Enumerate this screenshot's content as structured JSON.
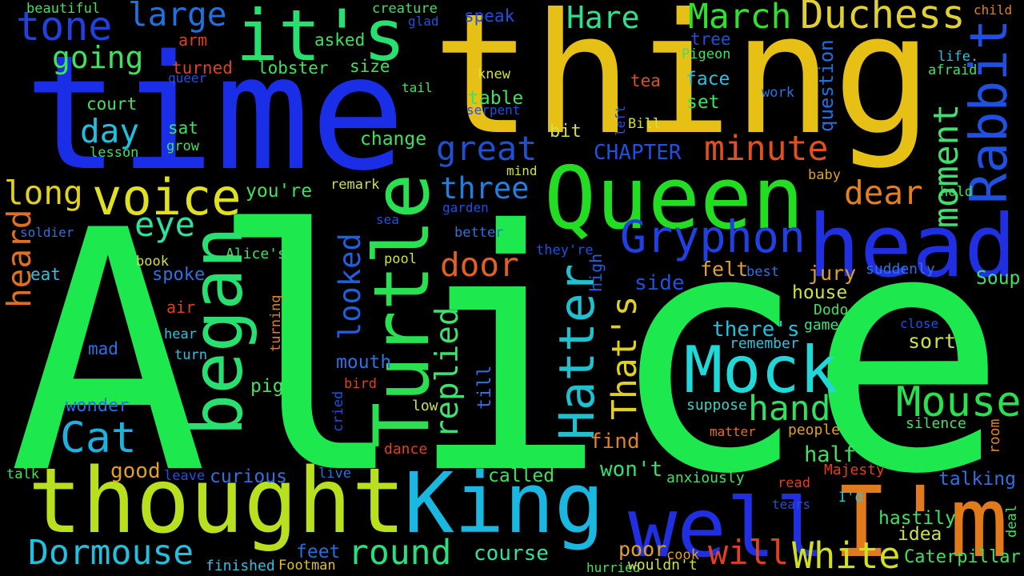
{
  "words": [
    {
      "text": "Alice",
      "color": "#1de84e"
    },
    {
      "text": "time",
      "color": "#1a2ee8"
    },
    {
      "text": "thing",
      "color": "#e6c014"
    },
    {
      "text": "Queen",
      "color": "#22dd22"
    },
    {
      "text": "head",
      "color": "#2030e0"
    },
    {
      "text": "thought",
      "color": "#b8e01e"
    },
    {
      "text": "King",
      "color": "#1ab8e0"
    },
    {
      "text": "well",
      "color": "#2030e0"
    },
    {
      "text": "I'm",
      "color": "#e07a1a"
    },
    {
      "text": "Mock",
      "color": "#20d8d8"
    },
    {
      "text": "it's",
      "color": "#28e070"
    },
    {
      "text": "Turtle",
      "color": "#28e050"
    },
    {
      "text": "began",
      "color": "#28e070"
    },
    {
      "text": "voice",
      "color": "#e0e020"
    },
    {
      "text": "Gryphon",
      "color": "#2040e0"
    },
    {
      "text": "Rabbit",
      "color": "#2050e0"
    },
    {
      "text": "Hatter",
      "color": "#20c0d0"
    },
    {
      "text": "Mouse",
      "color": "#28e050"
    },
    {
      "text": "Cat",
      "color": "#20b0e0"
    },
    {
      "text": "Dormouse",
      "color": "#20c0e0"
    },
    {
      "text": "round",
      "color": "#28e080"
    },
    {
      "text": "White",
      "color": "#d0e020"
    },
    {
      "text": "will",
      "color": "#e04020"
    },
    {
      "text": "Caterpillar",
      "color": "#40e060"
    },
    {
      "text": "Duchess",
      "color": "#e0d030"
    },
    {
      "text": "March",
      "color": "#30e030"
    },
    {
      "text": "Hare",
      "color": "#30e090"
    },
    {
      "text": "minute",
      "color": "#e05020"
    },
    {
      "text": "dear",
      "color": "#e08020"
    },
    {
      "text": "moment",
      "color": "#40e070"
    },
    {
      "text": "question",
      "color": "#2070e0"
    },
    {
      "text": "great",
      "color": "#2050d0"
    },
    {
      "text": "three",
      "color": "#2080e0"
    },
    {
      "text": "looked",
      "color": "#2060e0"
    },
    {
      "text": "door",
      "color": "#e06020"
    },
    {
      "text": "replied",
      "color": "#40e070"
    },
    {
      "text": "That's",
      "color": "#e0d020"
    },
    {
      "text": "hand",
      "color": "#30e060"
    },
    {
      "text": "tone",
      "color": "#2040e0"
    },
    {
      "text": "large",
      "color": "#2070e0"
    },
    {
      "text": "going",
      "color": "#40e060"
    },
    {
      "text": "day",
      "color": "#20c0e0"
    },
    {
      "text": "long",
      "color": "#e0d020"
    },
    {
      "text": "eye",
      "color": "#30e0a0"
    },
    {
      "text": "heard",
      "color": "#e07020"
    },
    {
      "text": "Soup",
      "color": "#40e060"
    },
    {
      "text": "jury",
      "color": "#e0a020"
    },
    {
      "text": "felt",
      "color": "#e0a030"
    },
    {
      "text": "side",
      "color": "#2050e0"
    },
    {
      "text": "house",
      "color": "#d0e040"
    },
    {
      "text": "there's",
      "color": "#20c0e0"
    },
    {
      "text": "sort",
      "color": "#d0e040"
    },
    {
      "text": "Dodo",
      "color": "#40e060"
    },
    {
      "text": "game",
      "color": "#40e080"
    },
    {
      "text": "remember",
      "color": "#30c0e0"
    },
    {
      "text": "close",
      "color": "#2050e0"
    },
    {
      "text": "suddenly",
      "color": "#3070e0"
    },
    {
      "text": "best",
      "color": "#3070e0"
    },
    {
      "text": "high",
      "color": "#2060e0"
    },
    {
      "text": "find",
      "color": "#e08020"
    },
    {
      "text": "won't",
      "color": "#30e070"
    },
    {
      "text": "half",
      "color": "#40e060"
    },
    {
      "text": "suppose",
      "color": "#40d0c0"
    },
    {
      "text": "silence",
      "color": "#40e070"
    },
    {
      "text": "room",
      "color": "#e08020"
    },
    {
      "text": "matter",
      "color": "#e07030"
    },
    {
      "text": "people",
      "color": "#e0a020"
    },
    {
      "text": "Majesty",
      "color": "#e04020"
    },
    {
      "text": "anxiously",
      "color": "#40e060"
    },
    {
      "text": "read",
      "color": "#e04020"
    },
    {
      "text": "talking",
      "color": "#3070e0"
    },
    {
      "text": "I'd",
      "color": "#30c0e0"
    },
    {
      "text": "tears",
      "color": "#2050e0"
    },
    {
      "text": "hastily",
      "color": "#40e060"
    },
    {
      "text": "idea",
      "color": "#d0e040"
    },
    {
      "text": "deal",
      "color": "#40e060"
    },
    {
      "text": "poor",
      "color": "#e0a020"
    },
    {
      "text": "cook",
      "color": "#e0a020"
    },
    {
      "text": "hurried",
      "color": "#40e060"
    },
    {
      "text": "wouldn't",
      "color": "#d0e040"
    },
    {
      "text": "Footman",
      "color": "#e0c020"
    },
    {
      "text": "finished",
      "color": "#30c0e0"
    },
    {
      "text": "feet",
      "color": "#2070e0"
    },
    {
      "text": "course",
      "color": "#30e0a0"
    },
    {
      "text": "called",
      "color": "#40e060"
    },
    {
      "text": "live",
      "color": "#3070e0"
    },
    {
      "text": "curious",
      "color": "#3070e0"
    },
    {
      "text": "leave",
      "color": "#2050e0"
    },
    {
      "text": "good",
      "color": "#e0a020"
    },
    {
      "text": "talk",
      "color": "#40e060"
    },
    {
      "text": "wonder",
      "color": "#3070e0"
    },
    {
      "text": "pig",
      "color": "#40e060"
    },
    {
      "text": "mouth",
      "color": "#3070e0"
    },
    {
      "text": "bird",
      "color": "#e04020"
    },
    {
      "text": "cried",
      "color": "#2050e0"
    },
    {
      "text": "low",
      "color": "#d0e040"
    },
    {
      "text": "till",
      "color": "#3070e0"
    },
    {
      "text": "dance",
      "color": "#e04020"
    },
    {
      "text": "mad",
      "color": "#3070e0"
    },
    {
      "text": "turn",
      "color": "#30c0e0"
    },
    {
      "text": "hear",
      "color": "#30c0e0"
    },
    {
      "text": "turning",
      "color": "#e08020"
    },
    {
      "text": "air",
      "color": "#e04020"
    },
    {
      "text": "spoke",
      "color": "#3070e0"
    },
    {
      "text": "Alice's",
      "color": "#40e060"
    },
    {
      "text": "book",
      "color": "#d0e040"
    },
    {
      "text": "eat",
      "color": "#30c0e0"
    },
    {
      "text": "soldier",
      "color": "#3070e0"
    },
    {
      "text": "you're",
      "color": "#40e060"
    },
    {
      "text": "remark",
      "color": "#d0e040"
    },
    {
      "text": "sea",
      "color": "#2050e0"
    },
    {
      "text": "garden",
      "color": "#2050e0"
    },
    {
      "text": "better",
      "color": "#3070e0"
    },
    {
      "text": "they're",
      "color": "#2050e0"
    },
    {
      "text": "pool",
      "color": "#d0e040"
    },
    {
      "text": "CHAPTER",
      "color": "#2050e0"
    },
    {
      "text": "bit",
      "color": "#d0e040"
    },
    {
      "text": "change",
      "color": "#40e060"
    },
    {
      "text": "table",
      "color": "#40e060"
    },
    {
      "text": "serpent",
      "color": "#2050e0"
    },
    {
      "text": "mind",
      "color": "#d0e040"
    },
    {
      "text": "set",
      "color": "#40e060"
    },
    {
      "text": "face",
      "color": "#30c0e0"
    },
    {
      "text": "tea",
      "color": "#e05020"
    },
    {
      "text": "Bill",
      "color": "#d0e040"
    },
    {
      "text": "left",
      "color": "#2050e0"
    },
    {
      "text": "work",
      "color": "#3070e0"
    },
    {
      "text": "baby",
      "color": "#e0a020"
    },
    {
      "text": "hold",
      "color": "#40e060"
    },
    {
      "text": "life.",
      "color": "#30c0e0"
    },
    {
      "text": "afraid",
      "color": "#40e060"
    },
    {
      "text": "child",
      "color": "#e08020"
    },
    {
      "text": "tree",
      "color": "#2050e0"
    },
    {
      "text": "Pigeon",
      "color": "#40e060"
    },
    {
      "text": "speak",
      "color": "#2050e0"
    },
    {
      "text": "knew",
      "color": "#d0e040"
    },
    {
      "text": "glad",
      "color": "#2050e0"
    },
    {
      "text": "creature",
      "color": "#40e060"
    },
    {
      "text": "asked",
      "color": "#40e060"
    },
    {
      "text": "lobster",
      "color": "#40e060"
    },
    {
      "text": "size",
      "color": "#40e060"
    },
    {
      "text": "tail",
      "color": "#40e060"
    },
    {
      "text": "arm",
      "color": "#e04020"
    },
    {
      "text": "turned",
      "color": "#e04020"
    },
    {
      "text": "queer",
      "color": "#2050e0"
    },
    {
      "text": "court",
      "color": "#40e060"
    },
    {
      "text": "sat",
      "color": "#40e060"
    },
    {
      "text": "grow",
      "color": "#40e060"
    },
    {
      "text": "lesson",
      "color": "#40e060"
    },
    {
      "text": "beautiful",
      "color": "#40e060"
    }
  ]
}
